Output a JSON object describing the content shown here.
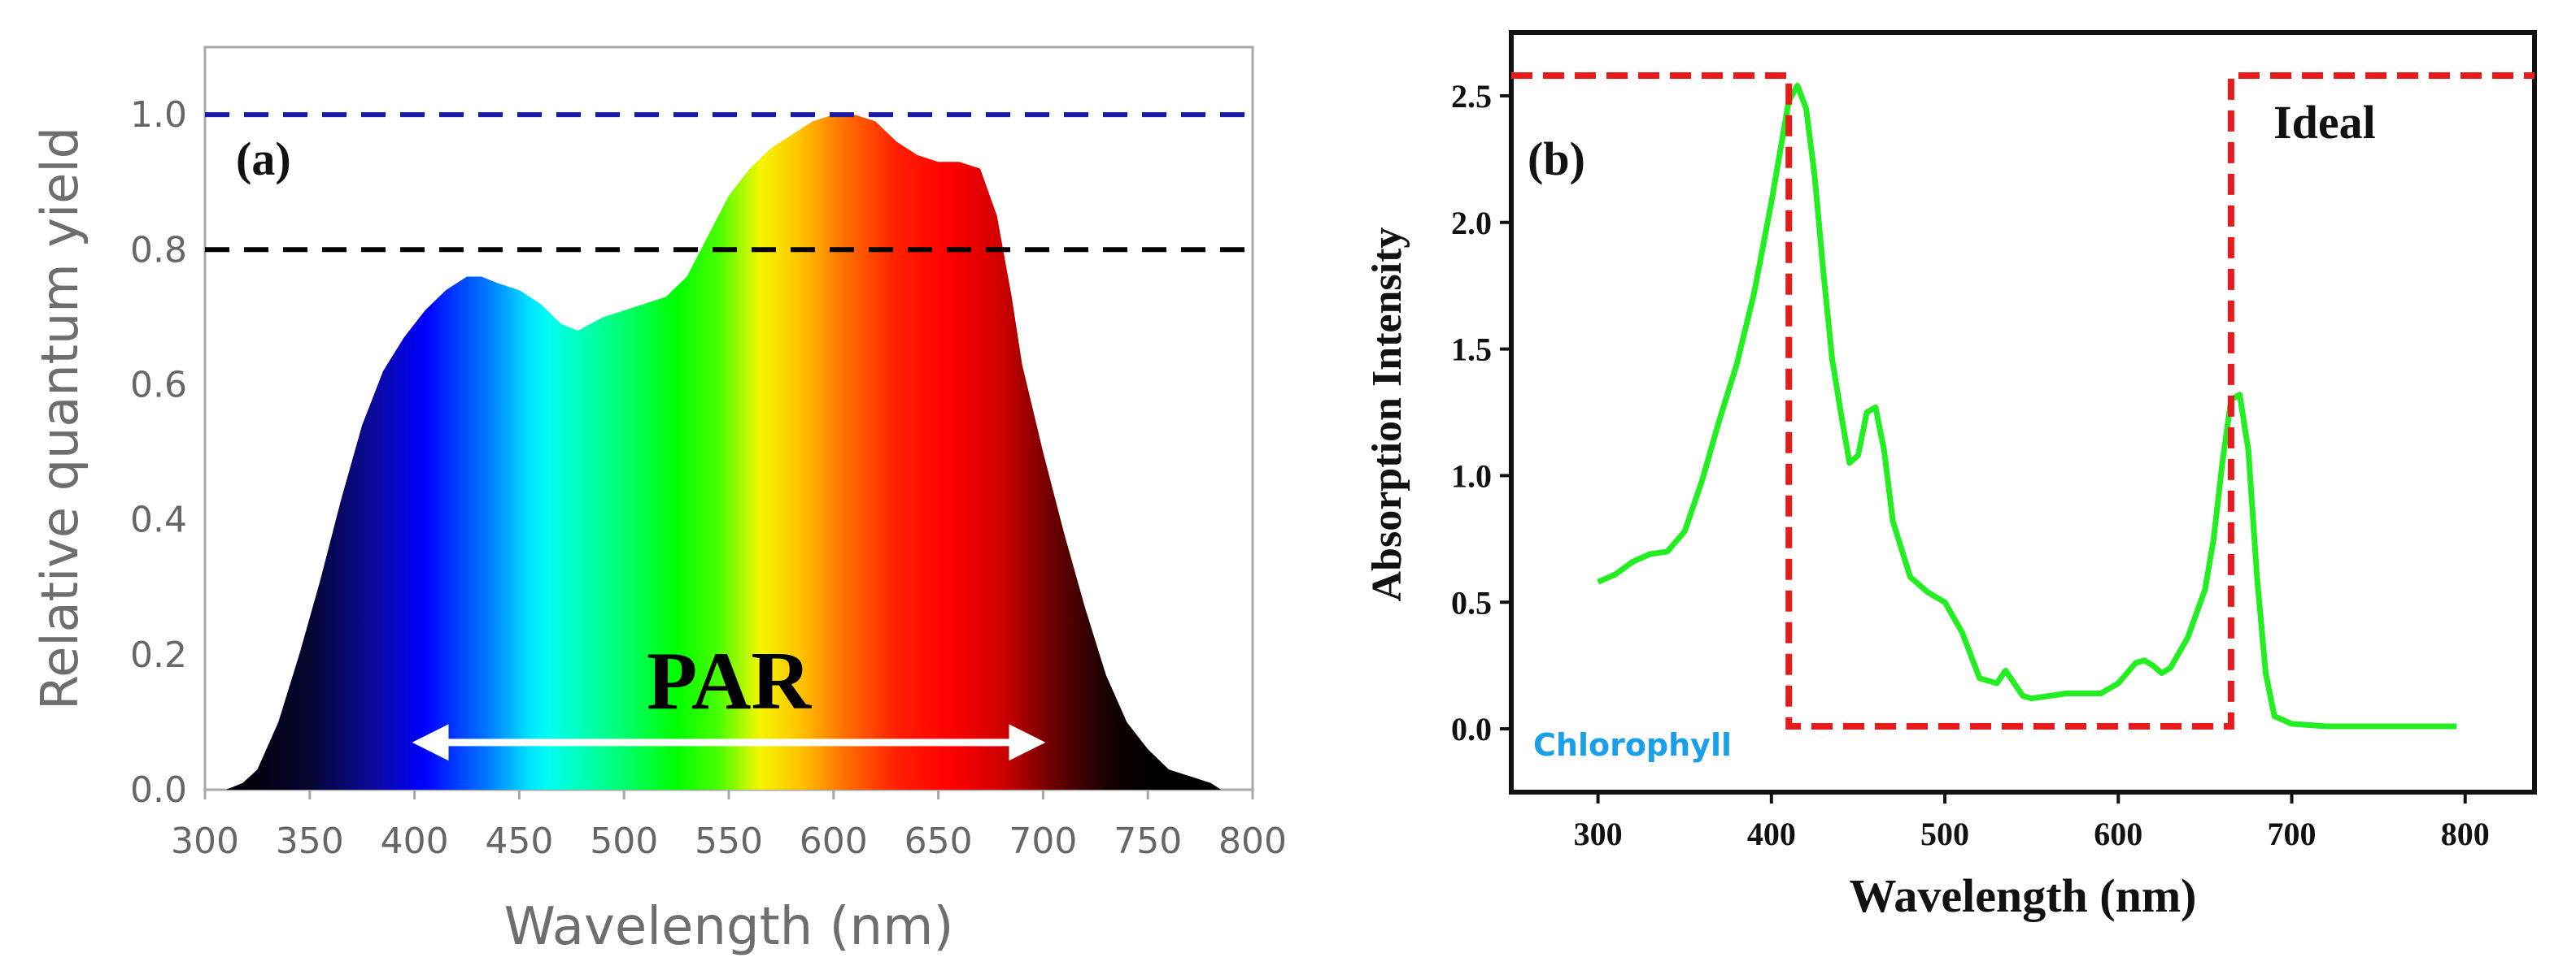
{
  "chart_data": [
    {
      "type": "area",
      "panel_label": "(a)",
      "xlabel": "Wavelength (nm)",
      "ylabel": "Relative quantum yield",
      "xlim": [
        300,
        800
      ],
      "ylim": [
        0,
        1.1
      ],
      "x_ticks": [
        300,
        350,
        400,
        450,
        500,
        550,
        600,
        650,
        700,
        750,
        800
      ],
      "y_ticks": [
        "0.0",
        "0.2",
        "0.4",
        "0.6",
        "0.8",
        "1.0"
      ],
      "reference_lines": [
        {
          "name": "blue dashed",
          "y": 1.0,
          "color": "#1a1aa8"
        },
        {
          "name": "black dashed",
          "y": 0.8,
          "color": "#000000"
        }
      ],
      "annotation": {
        "text": "PAR",
        "x_start": 400,
        "x_end": 700,
        "y": 0.07
      },
      "series": [
        {
          "name": "Relative quantum yield",
          "x": [
            310,
            318,
            325,
            335,
            345,
            355,
            365,
            375,
            385,
            395,
            405,
            415,
            425,
            432,
            440,
            450,
            460,
            470,
            478,
            490,
            500,
            510,
            520,
            530,
            540,
            550,
            560,
            570,
            580,
            590,
            600,
            610,
            620,
            630,
            640,
            650,
            660,
            670,
            678,
            685,
            690,
            700,
            710,
            720,
            730,
            740,
            750,
            760,
            770,
            780,
            785
          ],
          "values": [
            0.0,
            0.01,
            0.03,
            0.1,
            0.2,
            0.31,
            0.43,
            0.54,
            0.62,
            0.67,
            0.71,
            0.74,
            0.76,
            0.76,
            0.75,
            0.74,
            0.72,
            0.69,
            0.68,
            0.7,
            0.71,
            0.72,
            0.73,
            0.76,
            0.82,
            0.88,
            0.92,
            0.95,
            0.97,
            0.99,
            1.0,
            1.0,
            0.99,
            0.96,
            0.94,
            0.93,
            0.93,
            0.92,
            0.85,
            0.73,
            0.63,
            0.5,
            0.38,
            0.27,
            0.17,
            0.1,
            0.06,
            0.03,
            0.02,
            0.01,
            0.0
          ]
        }
      ]
    },
    {
      "type": "line",
      "panel_label": "(b)",
      "xlabel": "Wavelength (nm)",
      "ylabel": "Absorption Intensity",
      "xlim": [
        250,
        840
      ],
      "ylim": [
        -0.25,
        2.75
      ],
      "x_ticks": [
        300,
        400,
        500,
        600,
        700,
        800
      ],
      "y_ticks": [
        "0.0",
        "0.5",
        "1.0",
        "1.5",
        "2.0",
        "2.5"
      ],
      "legend": [
        {
          "label": "Chlorophyll",
          "color": "#1aa0e8"
        },
        {
          "label": "Ideal",
          "color": "#111111"
        }
      ],
      "series": [
        {
          "name": "Chlorophyll",
          "color": "#22ee22",
          "x": [
            300,
            310,
            320,
            330,
            340,
            350,
            360,
            370,
            380,
            390,
            400,
            405,
            410,
            415,
            420,
            425,
            430,
            435,
            440,
            445,
            450,
            455,
            460,
            465,
            470,
            480,
            490,
            500,
            510,
            520,
            530,
            535,
            540,
            545,
            550,
            560,
            570,
            580,
            590,
            600,
            610,
            615,
            620,
            625,
            630,
            640,
            650,
            655,
            660,
            665,
            670,
            675,
            680,
            685,
            690,
            700,
            720,
            750,
            780,
            795
          ],
          "values": [
            0.58,
            0.61,
            0.66,
            0.69,
            0.7,
            0.78,
            0.98,
            1.22,
            1.44,
            1.72,
            2.08,
            2.28,
            2.48,
            2.54,
            2.45,
            2.18,
            1.8,
            1.46,
            1.25,
            1.05,
            1.08,
            1.25,
            1.27,
            1.1,
            0.82,
            0.6,
            0.54,
            0.5,
            0.38,
            0.2,
            0.18,
            0.23,
            0.18,
            0.13,
            0.12,
            0.13,
            0.14,
            0.14,
            0.14,
            0.18,
            0.26,
            0.27,
            0.25,
            0.22,
            0.24,
            0.36,
            0.55,
            0.75,
            1.05,
            1.3,
            1.32,
            1.1,
            0.6,
            0.22,
            0.05,
            0.02,
            0.01,
            0.01,
            0.01,
            0.01
          ]
        },
        {
          "name": "Ideal",
          "color": "#e81a1a",
          "x": [
            250,
            410,
            410,
            665,
            665,
            840
          ],
          "values": [
            2.58,
            2.58,
            0.01,
            0.01,
            2.58,
            2.58
          ]
        }
      ]
    }
  ]
}
